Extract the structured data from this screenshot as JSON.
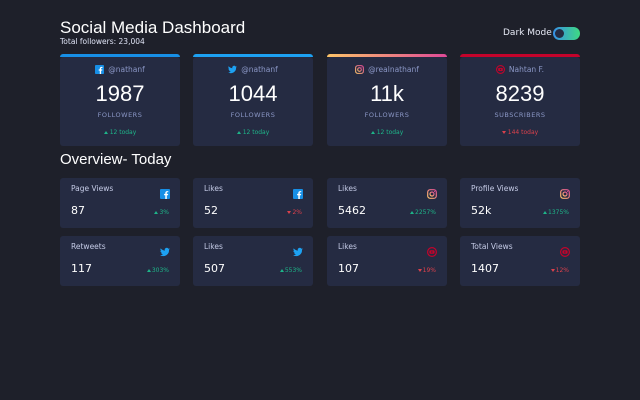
{
  "header": {
    "title": "Social Media Dashboard",
    "total": "Total followers: 23,004",
    "toggle_label": "Dark Mode"
  },
  "cards": [
    {
      "handle": "@nathanf",
      "count": "1987",
      "label": "FOLLOWERS",
      "change": "12 today"
    },
    {
      "handle": "@nathanf",
      "count": "1044",
      "label": "FOLLOWERS",
      "change": "12 today"
    },
    {
      "handle": "@realnathanf",
      "count": "11k",
      "label": "FOLLOWERS",
      "change": "12 today"
    },
    {
      "handle": "Nahtan F.",
      "count": "8239",
      "label": "SUBSCRIBERS",
      "change": "144 today"
    }
  ],
  "overview": {
    "title": "Overview- Today",
    "tiles": [
      {
        "label": "Page Views",
        "value": "87",
        "change": "3%"
      },
      {
        "label": "Likes",
        "value": "52",
        "change": "2%"
      },
      {
        "label": "Likes",
        "value": "5462",
        "change": "2257%"
      },
      {
        "label": "Profile Views",
        "value": "52k",
        "change": "1375%"
      },
      {
        "label": "Retweets",
        "value": "117",
        "change": "303%"
      },
      {
        "label": "Likes",
        "value": "507",
        "change": "553%"
      },
      {
        "label": "Likes",
        "value": "107",
        "change": "19%"
      },
      {
        "label": "Total Views",
        "value": "1407",
        "change": "12%"
      }
    ]
  }
}
